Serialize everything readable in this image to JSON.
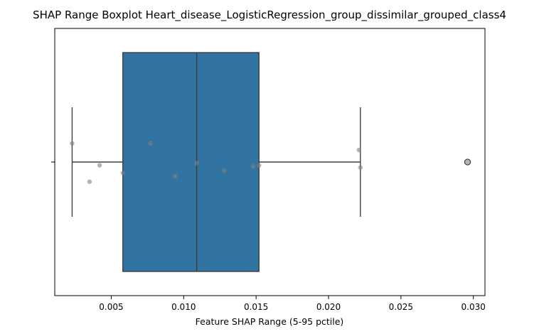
{
  "chart_data": {
    "type": "box",
    "title": "SHAP Range Boxplot Heart_disease_LogisticRegression_group_dissimilar_grouped_class4",
    "xlabel": "Feature SHAP Range (5-95 pctile)",
    "ylabel": "",
    "xlim": [
      0.0011,
      0.0308
    ],
    "x_ticks": [
      0.005,
      0.01,
      0.015,
      0.02,
      0.025,
      0.03
    ],
    "x_tick_labels": [
      "0.005",
      "0.010",
      "0.015",
      "0.020",
      "0.025",
      "0.030"
    ],
    "grid": false,
    "box": {
      "q1": 0.0058,
      "median": 0.0109,
      "q3": 0.0152,
      "whisker_low": 0.0023,
      "whisker_high": 0.0222,
      "outliers": [
        0.0296
      ],
      "color": "#3274a1"
    },
    "points": [
      {
        "x": 0.0023,
        "jitter": -0.17
      },
      {
        "x": 0.0035,
        "jitter": 0.18
      },
      {
        "x": 0.0042,
        "jitter": 0.03
      },
      {
        "x": 0.0058,
        "jitter": 0.1
      },
      {
        "x": 0.0077,
        "jitter": -0.17
      },
      {
        "x": 0.0094,
        "jitter": 0.13
      },
      {
        "x": 0.0109,
        "jitter": 0.01
      },
      {
        "x": 0.0128,
        "jitter": 0.08
      },
      {
        "x": 0.0148,
        "jitter": 0.04
      },
      {
        "x": 0.0152,
        "jitter": 0.03
      },
      {
        "x": 0.0221,
        "jitter": -0.11
      },
      {
        "x": 0.0222,
        "jitter": 0.05
      },
      {
        "x": 0.0296,
        "jitter": 0.0
      }
    ],
    "point_color": "#808080"
  }
}
